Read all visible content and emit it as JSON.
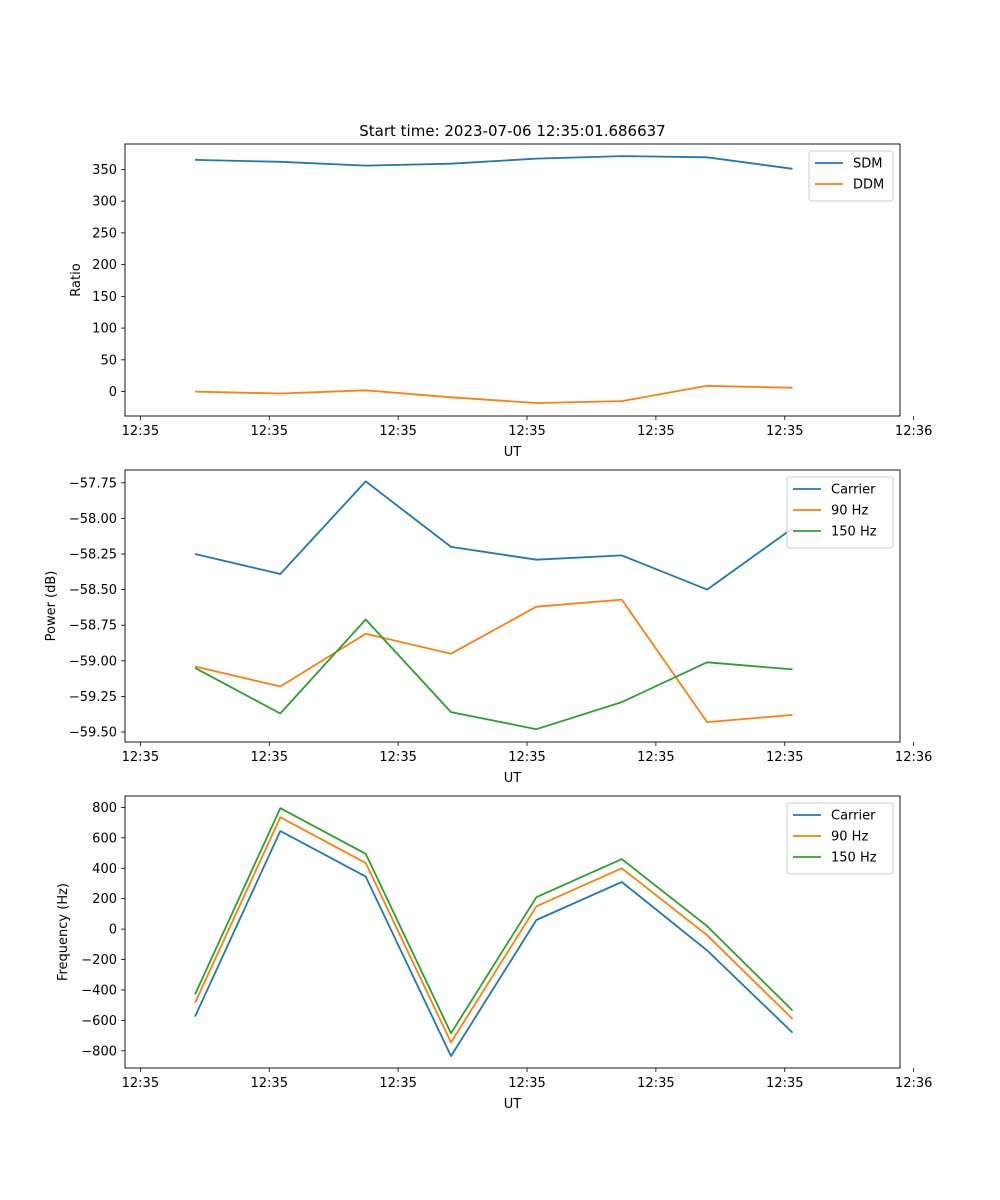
{
  "title": "Start time: 2023-07-06 12:35:01.686637",
  "colors": {
    "blue": "#1f77b4",
    "orange": "#ff7f0e",
    "green": "#2ca02c"
  },
  "chart_data": [
    {
      "type": "line",
      "xlabel": "UT",
      "ylabel": "Ratio",
      "x": [
        1,
        2,
        3,
        4,
        5,
        6,
        7,
        8
      ],
      "xlim": [
        0.18,
        9.26
      ],
      "xticks": [
        0.36,
        1.87,
        3.38,
        4.89,
        6.4,
        7.91,
        9.42
      ],
      "xtick_labels": [
        "12:35",
        "12:35",
        "12:35",
        "12:35",
        "12:35",
        "12:35",
        "12:36"
      ],
      "ylim": [
        -38.5,
        390
      ],
      "yticks": [
        0,
        50,
        100,
        150,
        200,
        250,
        300,
        350
      ],
      "ytick_labels": [
        "0",
        "50",
        "100",
        "150",
        "200",
        "250",
        "300",
        "350"
      ],
      "legend": "top-right",
      "series": [
        {
          "name": "SDM",
          "color": "#1f77b4",
          "values": [
            365,
            362,
            356,
            359,
            367,
            371,
            369,
            351
          ]
        },
        {
          "name": "DDM",
          "color": "#ff7f0e",
          "values": [
            0,
            -3,
            2,
            -9,
            -18,
            -15,
            9,
            6
          ]
        }
      ]
    },
    {
      "type": "line",
      "xlabel": "UT",
      "ylabel": "Power (dB)",
      "x": [
        1,
        2,
        3,
        4,
        5,
        6,
        7,
        8
      ],
      "xlim": [
        0.18,
        9.26
      ],
      "xticks": [
        0.36,
        1.87,
        3.38,
        4.89,
        6.4,
        7.91,
        9.42
      ],
      "xtick_labels": [
        "12:35",
        "12:35",
        "12:35",
        "12:35",
        "12:35",
        "12:35",
        "12:36"
      ],
      "ylim": [
        -59.57,
        -57.66
      ],
      "yticks": [
        -59.5,
        -59.25,
        -59.0,
        -58.75,
        -58.5,
        -58.25,
        -58.0,
        -57.75
      ],
      "ytick_labels": [
        "−59.50",
        "−59.25",
        "−59.00",
        "−58.75",
        "−58.50",
        "−58.25",
        "−58.00",
        "−57.75"
      ],
      "legend": "top-right",
      "series": [
        {
          "name": "Carrier",
          "color": "#1f77b4",
          "values": [
            -58.25,
            -58.39,
            -57.74,
            -58.2,
            -58.29,
            -58.26,
            -58.5,
            -58.07
          ]
        },
        {
          "name": "90 Hz",
          "color": "#ff7f0e",
          "values": [
            -59.04,
            -59.18,
            -58.81,
            -58.95,
            -58.62,
            -58.57,
            -59.43,
            -59.38
          ]
        },
        {
          "name": "150 Hz",
          "color": "#2ca02c",
          "values": [
            -59.05,
            -59.37,
            -58.71,
            -59.36,
            -59.48,
            -59.29,
            -59.01,
            -59.06
          ]
        }
      ]
    },
    {
      "type": "line",
      "xlabel": "UT",
      "ylabel": "Frequency (Hz)",
      "x": [
        1,
        2,
        3,
        4,
        5,
        6,
        7,
        8
      ],
      "xlim": [
        0.18,
        9.26
      ],
      "xticks": [
        0.36,
        1.87,
        3.38,
        4.89,
        6.4,
        7.91,
        9.42
      ],
      "xtick_labels": [
        "12:35",
        "12:35",
        "12:35",
        "12:35",
        "12:35",
        "12:35",
        "12:36"
      ],
      "ylim": [
        -913,
        875
      ],
      "yticks": [
        -800,
        -600,
        -400,
        -200,
        0,
        200,
        400,
        600,
        800
      ],
      "ytick_labels": [
        "−800",
        "−600",
        "−400",
        "−200",
        "0",
        "200",
        "400",
        "600",
        "800"
      ],
      "legend": "top-right",
      "series": [
        {
          "name": "Carrier",
          "color": "#1f77b4",
          "values": [
            -575,
            645,
            345,
            -835,
            60,
            310,
            -140,
            -680
          ]
        },
        {
          "name": "90 Hz",
          "color": "#ff7f0e",
          "values": [
            -485,
            735,
            435,
            -745,
            150,
            400,
            -40,
            -590
          ]
        },
        {
          "name": "150 Hz",
          "color": "#2ca02c",
          "values": [
            -430,
            795,
            495,
            -685,
            210,
            460,
            20,
            -535
          ]
        }
      ]
    }
  ]
}
